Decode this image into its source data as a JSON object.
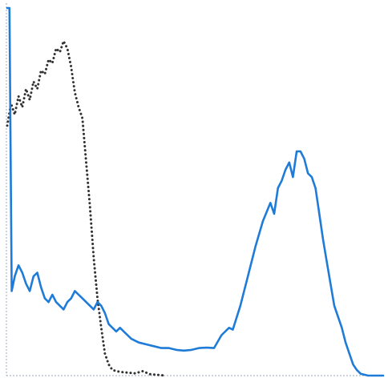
{
  "chart_data": {
    "type": "line",
    "title": "",
    "xlabel": "",
    "ylabel": "",
    "xlim": [
      0,
      100
    ],
    "ylim": [
      0,
      100
    ],
    "grid": false,
    "legend": "none",
    "series": [
      {
        "style": "dotted",
        "color": "#333333",
        "points": [
          [
            0,
            68
          ],
          [
            1,
            74
          ],
          [
            2,
            71
          ],
          [
            3,
            76
          ],
          [
            4,
            73
          ],
          [
            5,
            78
          ],
          [
            6,
            75
          ],
          [
            7,
            80
          ],
          [
            8,
            78
          ],
          [
            9,
            83
          ],
          [
            10,
            82
          ],
          [
            11,
            86
          ],
          [
            12,
            85
          ],
          [
            13,
            89
          ],
          [
            14,
            88
          ],
          [
            15,
            91
          ],
          [
            16,
            89
          ],
          [
            17,
            84
          ],
          [
            18,
            77
          ],
          [
            19,
            73
          ],
          [
            20,
            70
          ],
          [
            21,
            58
          ],
          [
            22,
            46
          ],
          [
            23,
            32
          ],
          [
            24,
            21
          ],
          [
            25,
            13
          ],
          [
            26,
            6
          ],
          [
            27,
            3
          ],
          [
            28,
            1.5
          ],
          [
            30,
            1
          ],
          [
            32,
            0.8
          ],
          [
            34,
            0.6
          ],
          [
            36,
            1.2
          ],
          [
            38,
            0.4
          ],
          [
            40,
            0.2
          ],
          [
            42,
            0
          ]
        ]
      },
      {
        "style": "solid",
        "color": "#1f7bd8",
        "points": [
          [
            0,
            100
          ],
          [
            0.6,
            100
          ],
          [
            1.2,
            23
          ],
          [
            2,
            27
          ],
          [
            3,
            30
          ],
          [
            4,
            28
          ],
          [
            5,
            25
          ],
          [
            6,
            23
          ],
          [
            7,
            27
          ],
          [
            8,
            28
          ],
          [
            9,
            24
          ],
          [
            10,
            21
          ],
          [
            11,
            20
          ],
          [
            12,
            22
          ],
          [
            13,
            20
          ],
          [
            14,
            19
          ],
          [
            15,
            18
          ],
          [
            16,
            20
          ],
          [
            17,
            21
          ],
          [
            18,
            23
          ],
          [
            19,
            22
          ],
          [
            20,
            21
          ],
          [
            21,
            20
          ],
          [
            22,
            19
          ],
          [
            23,
            18
          ],
          [
            24,
            20
          ],
          [
            25,
            19
          ],
          [
            26,
            17
          ],
          [
            27,
            14
          ],
          [
            28,
            13
          ],
          [
            29,
            12
          ],
          [
            30,
            13
          ],
          [
            31,
            12
          ],
          [
            32,
            11
          ],
          [
            33,
            10
          ],
          [
            35,
            9
          ],
          [
            37,
            8.5
          ],
          [
            39,
            8
          ],
          [
            41,
            7.5
          ],
          [
            43,
            7.5
          ],
          [
            45,
            7
          ],
          [
            47,
            6.8
          ],
          [
            49,
            7
          ],
          [
            51,
            7.5
          ],
          [
            53,
            7.6
          ],
          [
            55,
            7.5
          ],
          [
            57,
            11
          ],
          [
            59,
            13
          ],
          [
            60,
            12.5
          ],
          [
            62,
            19
          ],
          [
            64,
            27
          ],
          [
            66,
            35
          ],
          [
            68,
            42
          ],
          [
            70,
            47
          ],
          [
            71,
            44
          ],
          [
            72,
            51
          ],
          [
            73,
            53
          ],
          [
            74,
            56
          ],
          [
            75,
            58
          ],
          [
            76,
            54
          ],
          [
            77,
            61
          ],
          [
            78,
            61
          ],
          [
            79,
            59
          ],
          [
            80,
            55
          ],
          [
            81,
            54
          ],
          [
            82,
            51
          ],
          [
            83,
            44
          ],
          [
            84,
            37
          ],
          [
            85,
            31
          ],
          [
            86,
            25
          ],
          [
            87,
            19
          ],
          [
            88,
            16
          ],
          [
            89,
            13
          ],
          [
            90,
            9
          ],
          [
            91,
            6
          ],
          [
            92,
            3
          ],
          [
            93,
            1.5
          ],
          [
            94,
            0.5
          ],
          [
            96,
            0
          ],
          [
            100,
            0
          ]
        ]
      }
    ]
  }
}
